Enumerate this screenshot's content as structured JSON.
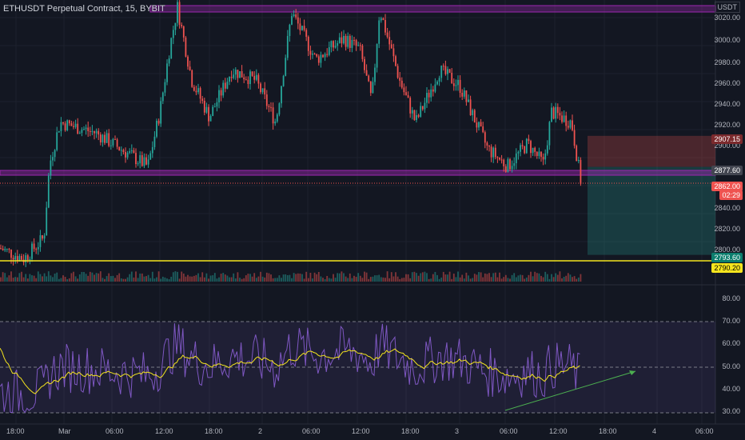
{
  "header": {
    "title": "ETHUSDT Perpetual Contract, 15, BYBIT",
    "currency": "USDT"
  },
  "price_axis": {
    "ticks": [
      "3020.00",
      "3000.00",
      "2980.00",
      "2960.00",
      "2940.00",
      "2920.00",
      "2900.00",
      "2840.00",
      "2820.00",
      "2800.00"
    ],
    "labels": {
      "stop": "2907.15",
      "entry": "2877.60",
      "last_price": "2862.00",
      "countdown": "02:29",
      "target": "2793.60",
      "support": "2790.20"
    }
  },
  "rsi_axis": {
    "ticks": [
      "80.00",
      "70.00",
      "60.00",
      "50.00",
      "40.00",
      "30.00"
    ]
  },
  "time_axis": {
    "ticks": [
      "18:00",
      "Mar",
      "06:00",
      "12:00",
      "18:00",
      "2",
      "06:00",
      "12:00",
      "18:00",
      "3",
      "06:00",
      "12:00",
      "18:00",
      "4",
      "06:00"
    ]
  },
  "colors": {
    "background": "#131722",
    "up": "#26a69a",
    "down": "#ef5350",
    "zone": "#9c27b0",
    "support_line": "#f5e51e",
    "rsi_line": "#7e57c2",
    "rsi_ma": "#f5e51e",
    "trendline": "#4caf50"
  },
  "chart_data": {
    "type": "candlestick",
    "symbol": "ETHUSDT Perpetual Contract",
    "interval": "15",
    "exchange": "BYBIT",
    "ylim": [
      2790,
      3030
    ],
    "key_prices": [
      {
        "name": "resistance_zone",
        "low": 3022,
        "high": 3028
      },
      {
        "name": "support_zone",
        "low": 2876,
        "high": 2880
      },
      {
        "name": "short_stop",
        "value": 2907.15
      },
      {
        "name": "short_entry",
        "value": 2877.6
      },
      {
        "name": "last_price",
        "value": 2862.0
      },
      {
        "name": "short_target",
        "value": 2793.6
      },
      {
        "name": "support_line",
        "value": 2790.2
      }
    ],
    "rsi_ylim": [
      28,
      82
    ],
    "rsi_levels": [
      70,
      50,
      30
    ]
  }
}
